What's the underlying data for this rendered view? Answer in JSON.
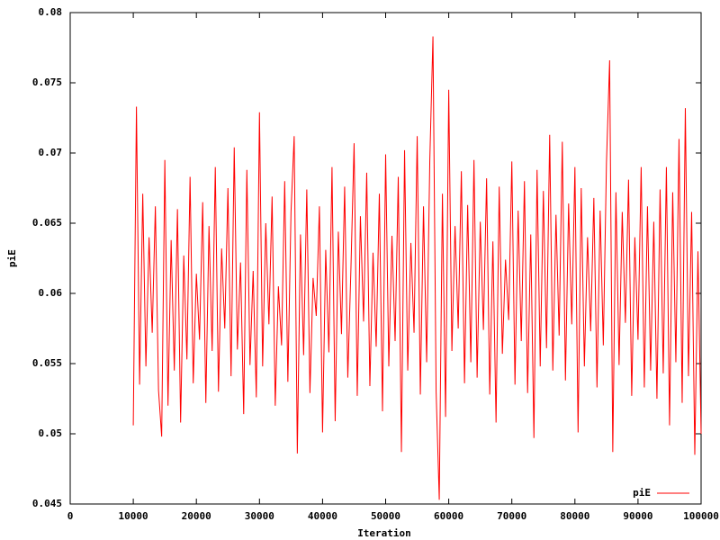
{
  "chart_data": {
    "type": "line",
    "x_label": "Iteration",
    "y_label": "piE",
    "xlim": [
      0,
      100000
    ],
    "xticks": [
      0,
      10000,
      20000,
      30000,
      40000,
      50000,
      60000,
      70000,
      80000,
      90000,
      100000
    ],
    "ylim": [
      0.045,
      0.08
    ],
    "yticks": [
      0.045,
      0.05,
      0.055,
      0.06,
      0.065,
      0.07,
      0.075,
      0.08
    ],
    "grid": false,
    "legend": "bottom-right",
    "x": [
      10000,
      10500,
      11000,
      11500,
      12000,
      12500,
      13000,
      13500,
      14000,
      14500,
      15000,
      15500,
      16000,
      16500,
      17000,
      17500,
      18000,
      18500,
      19000,
      19500,
      20000,
      20500,
      21000,
      21500,
      22000,
      22500,
      23000,
      23500,
      24000,
      24500,
      25000,
      25500,
      26000,
      26500,
      27000,
      27500,
      28000,
      28500,
      29000,
      29500,
      30000,
      30500,
      31000,
      31500,
      32000,
      32500,
      33000,
      33500,
      34000,
      34500,
      35000,
      35500,
      36000,
      36500,
      37000,
      37500,
      38000,
      38500,
      39000,
      39500,
      40000,
      40500,
      41000,
      41500,
      42000,
      42500,
      43000,
      43500,
      44000,
      44500,
      45000,
      45500,
      46000,
      46500,
      47000,
      47500,
      48000,
      48500,
      49000,
      49500,
      50000,
      50500,
      51000,
      51500,
      52000,
      52500,
      53000,
      53500,
      54000,
      54500,
      55000,
      55500,
      56000,
      56500,
      57000,
      57500,
      58000,
      58500,
      59000,
      59500,
      60000,
      60500,
      61000,
      61500,
      62000,
      62500,
      63000,
      63500,
      64000,
      64500,
      65000,
      65500,
      66000,
      66500,
      67000,
      67500,
      68000,
      68500,
      69000,
      69500,
      70000,
      70500,
      71000,
      71500,
      72000,
      72500,
      73000,
      73500,
      74000,
      74500,
      75000,
      75500,
      76000,
      76500,
      77000,
      77500,
      78000,
      78500,
      79000,
      79500,
      80000,
      80500,
      81000,
      81500,
      82000,
      82500,
      83000,
      83500,
      84000,
      84500,
      85000,
      85500,
      86000,
      86500,
      87000,
      87500,
      88000,
      88500,
      89000,
      89500,
      90000,
      90500,
      91000,
      91500,
      92000,
      92500,
      93000,
      93500,
      94000,
      94500,
      95000,
      95500,
      96000,
      96500,
      97000,
      97500,
      98000,
      98500,
      99000,
      99500,
      100000
    ],
    "series": [
      {
        "name": "piE",
        "color": "#ff0000",
        "values": [
          0.0506,
          0.0733,
          0.0535,
          0.0671,
          0.0548,
          0.064,
          0.0572,
          0.0662,
          0.0531,
          0.0498,
          0.0695,
          0.052,
          0.0638,
          0.0545,
          0.066,
          0.0508,
          0.0627,
          0.0553,
          0.0683,
          0.0536,
          0.0614,
          0.0567,
          0.0665,
          0.0522,
          0.0648,
          0.0559,
          0.069,
          0.053,
          0.0632,
          0.0575,
          0.0675,
          0.0541,
          0.0704,
          0.056,
          0.0622,
          0.0514,
          0.0688,
          0.0549,
          0.0616,
          0.0526,
          0.0729,
          0.0548,
          0.065,
          0.0578,
          0.0669,
          0.052,
          0.0605,
          0.0563,
          0.068,
          0.0537,
          0.0658,
          0.0712,
          0.0486,
          0.0642,
          0.0556,
          0.0674,
          0.0529,
          0.0611,
          0.0584,
          0.0662,
          0.0501,
          0.0631,
          0.0558,
          0.069,
          0.0509,
          0.0644,
          0.0571,
          0.0676,
          0.054,
          0.0618,
          0.0707,
          0.0527,
          0.0655,
          0.058,
          0.0686,
          0.0534,
          0.0629,
          0.0562,
          0.0671,
          0.0516,
          0.0699,
          0.0548,
          0.0641,
          0.0566,
          0.0683,
          0.0487,
          0.0702,
          0.0545,
          0.0636,
          0.0572,
          0.0712,
          0.0528,
          0.0662,
          0.0551,
          0.0695,
          0.0783,
          0.053,
          0.0453,
          0.0671,
          0.0512,
          0.0745,
          0.0559,
          0.0648,
          0.0575,
          0.0687,
          0.0536,
          0.0663,
          0.0551,
          0.0695,
          0.054,
          0.0651,
          0.0574,
          0.0682,
          0.0528,
          0.0637,
          0.0508,
          0.0676,
          0.0557,
          0.0624,
          0.0581,
          0.0694,
          0.0535,
          0.0659,
          0.0566,
          0.068,
          0.0529,
          0.0642,
          0.0497,
          0.0688,
          0.0548,
          0.0673,
          0.0561,
          0.0713,
          0.0545,
          0.0656,
          0.057,
          0.0708,
          0.0538,
          0.0664,
          0.0578,
          0.069,
          0.0501,
          0.0675,
          0.0548,
          0.064,
          0.0573,
          0.0668,
          0.0533,
          0.0659,
          0.0563,
          0.0693,
          0.0766,
          0.0487,
          0.0672,
          0.0549,
          0.0658,
          0.0579,
          0.0681,
          0.0527,
          0.064,
          0.0567,
          0.069,
          0.0533,
          0.0662,
          0.0545,
          0.0651,
          0.0525,
          0.0674,
          0.0543,
          0.069,
          0.0506,
          0.0672,
          0.0551,
          0.071,
          0.0522,
          0.0732,
          0.0541,
          0.0658,
          0.0485,
          0.063,
          0.05
        ]
      }
    ]
  }
}
